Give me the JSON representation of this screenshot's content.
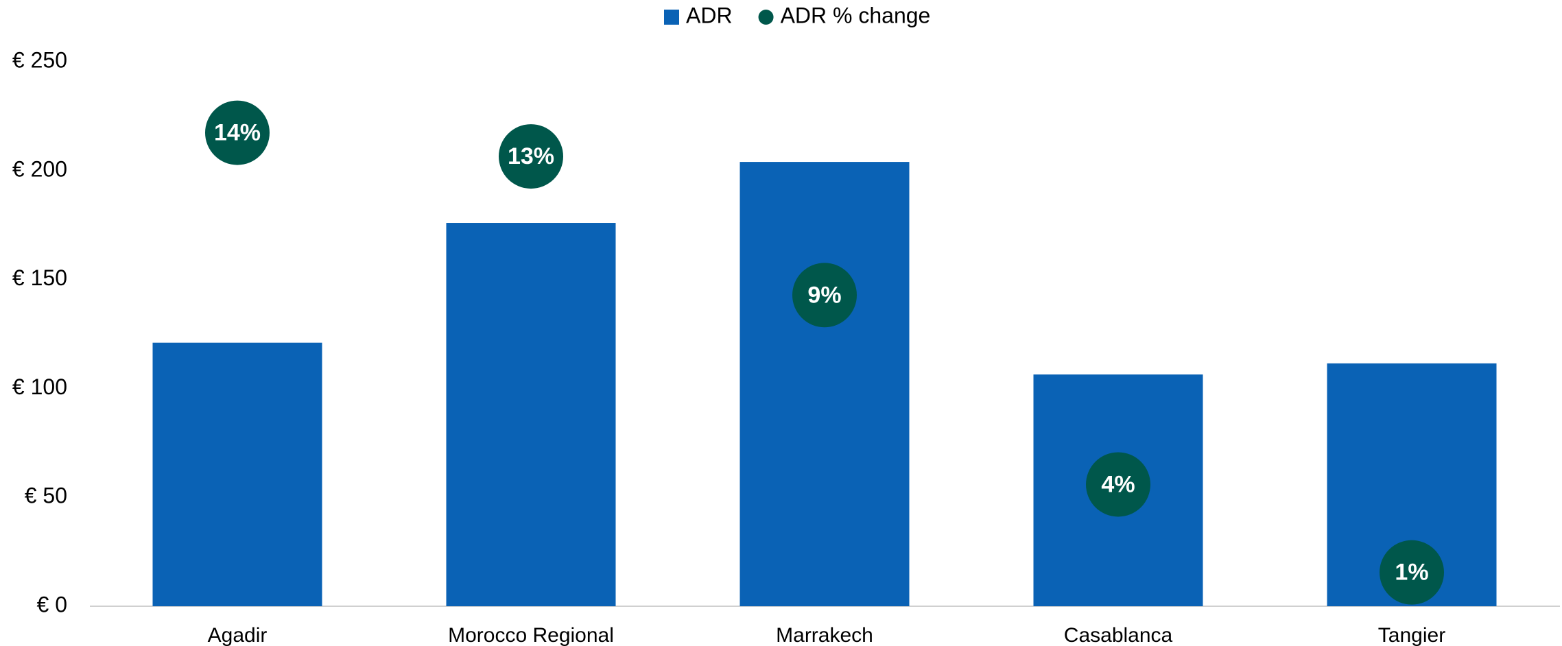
{
  "chart_data": {
    "type": "bar",
    "categories": [
      "Agadir",
      "Morocco Regional",
      "Marrakech",
      "Casablanca",
      "Tangier"
    ],
    "series": [
      {
        "name": "ADR",
        "type": "bar",
        "color": "#0a62b5",
        "values": [
          121,
          176,
          204,
          106.4,
          111.5
        ]
      },
      {
        "name": "ADR % change",
        "type": "dot",
        "axis": "y2",
        "color": "#00574b",
        "values": [
          14.0,
          13.3,
          9.2,
          3.6,
          1.0
        ],
        "value_labels": [
          "14%",
          "13%",
          "9%",
          "4%",
          "1%"
        ]
      }
    ],
    "ylim": [
      0,
      250
    ],
    "yticks": [
      {
        "value": 0,
        "label": "€ 0"
      },
      {
        "value": 50,
        "label": "€ 50"
      },
      {
        "value": 100,
        "label": "€ 100"
      },
      {
        "value": 150,
        "label": "€ 150"
      },
      {
        "value": 200,
        "label": "€ 200"
      },
      {
        "value": 250,
        "label": "€ 250"
      }
    ],
    "y2lim": [
      0,
      16.1
    ],
    "legend": "top"
  }
}
